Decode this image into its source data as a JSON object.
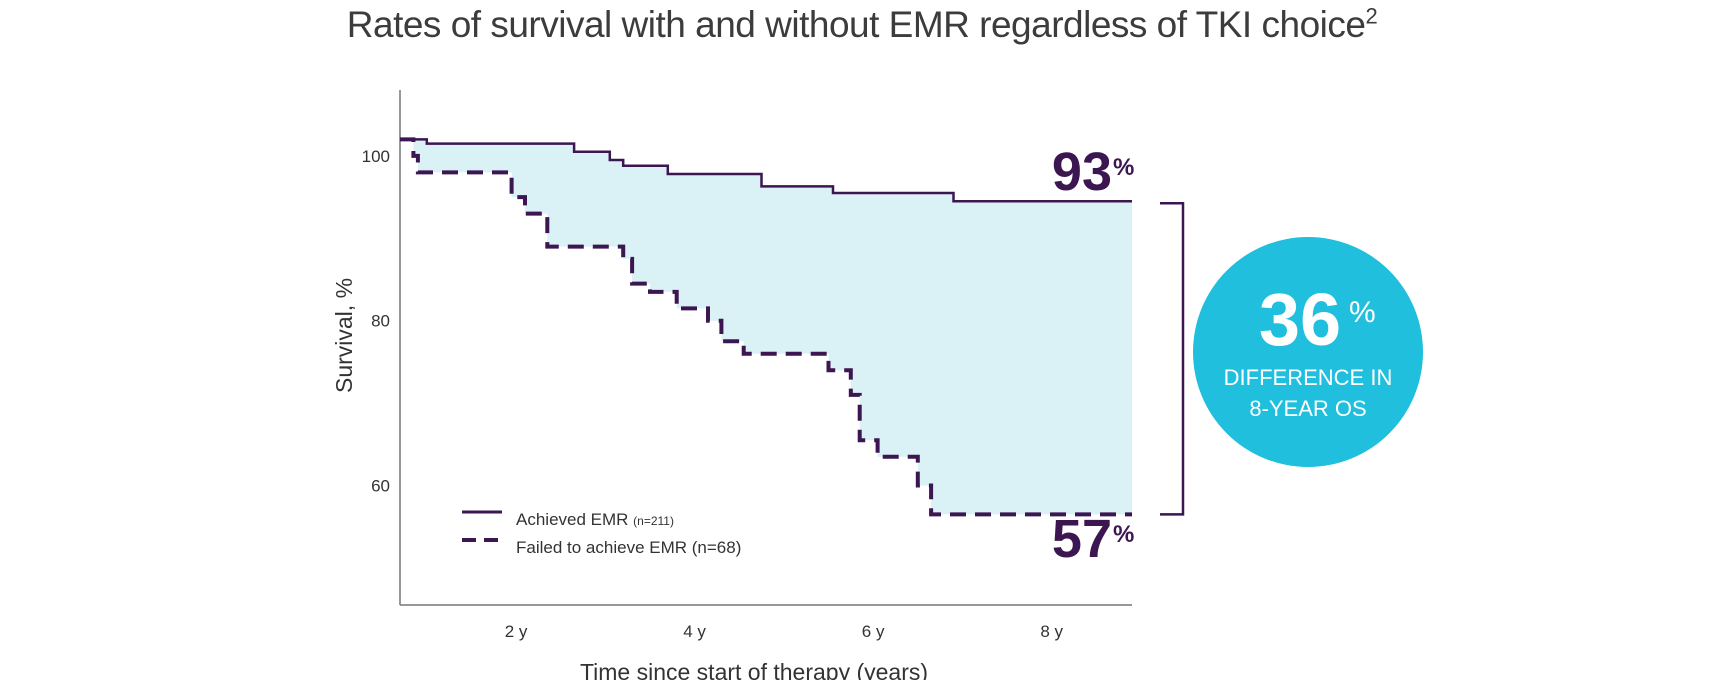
{
  "title": "Rates of survival with and without EMR regardless of TKI choice",
  "title_superscript": "2",
  "colors": {
    "line": "#3b1650",
    "shade": "#daf1f6",
    "circle": "#1fbfdd",
    "axis": "#777777"
  },
  "chart_data": {
    "type": "line",
    "xlabel": "Time since start of therapy (years)",
    "ylabel": "Survival, %",
    "x_ticks": [
      {
        "value": 2,
        "label": "2 y"
      },
      {
        "value": 4,
        "label": "4 y"
      },
      {
        "value": 6,
        "label": "6 y"
      },
      {
        "value": 8,
        "label": "8 y"
      }
    ],
    "y_ticks": [
      {
        "value": 60,
        "label": "60"
      },
      {
        "value": 80,
        "label": "80"
      },
      {
        "value": 100,
        "label": "100"
      }
    ],
    "xlim": [
      0.7,
      8.9
    ],
    "ylim": [
      45.5,
      108
    ],
    "series": [
      {
        "name": "Achieved EMR",
        "n_label": "(n=211)",
        "style": "solid",
        "points": [
          [
            0.7,
            102
          ],
          [
            1,
            102
          ],
          [
            1,
            101.5
          ],
          [
            2.65,
            101.5
          ],
          [
            2.65,
            100.5
          ],
          [
            3.05,
            100.5
          ],
          [
            3.05,
            99.5
          ],
          [
            3.2,
            99.5
          ],
          [
            3.2,
            98.8
          ],
          [
            3.7,
            98.8
          ],
          [
            3.7,
            97.8
          ],
          [
            4.75,
            97.8
          ],
          [
            4.75,
            96.3
          ],
          [
            5.55,
            96.3
          ],
          [
            5.55,
            95.5
          ],
          [
            6.9,
            95.5
          ],
          [
            6.9,
            94.5
          ],
          [
            8.9,
            94.5
          ]
        ]
      },
      {
        "name": "Failed to achieve EMR (n=68)",
        "style": "dashed",
        "points": [
          [
            0.7,
            102
          ],
          [
            0.85,
            102
          ],
          [
            0.85,
            100
          ],
          [
            0.9,
            100
          ],
          [
            0.9,
            98
          ],
          [
            1.95,
            98
          ],
          [
            1.95,
            95
          ],
          [
            2.1,
            95
          ],
          [
            2.1,
            93
          ],
          [
            2.35,
            93
          ],
          [
            2.35,
            89
          ],
          [
            3.2,
            89
          ],
          [
            3.2,
            87.5
          ],
          [
            3.3,
            87.5
          ],
          [
            3.3,
            84.5
          ],
          [
            3.5,
            84.5
          ],
          [
            3.5,
            83.5
          ],
          [
            3.8,
            83.5
          ],
          [
            3.8,
            81.5
          ],
          [
            4.15,
            81.5
          ],
          [
            4.15,
            80
          ],
          [
            4.3,
            80
          ],
          [
            4.3,
            77.5
          ],
          [
            4.55,
            77.5
          ],
          [
            4.55,
            76
          ],
          [
            5.5,
            76
          ],
          [
            5.5,
            74
          ],
          [
            5.75,
            74
          ],
          [
            5.75,
            71
          ],
          [
            5.85,
            71
          ],
          [
            5.85,
            65.5
          ],
          [
            6.05,
            65.5
          ],
          [
            6.05,
            63.5
          ],
          [
            6.5,
            63.5
          ],
          [
            6.5,
            60
          ],
          [
            6.65,
            60
          ],
          [
            6.65,
            56.5
          ],
          [
            8.9,
            56.5
          ]
        ]
      }
    ],
    "annotations": {
      "top_value": "93",
      "bottom_value": "57",
      "percent_sign": "%",
      "difference_value": "36",
      "difference_line1": "DIFFERENCE IN",
      "difference_line2": "8-YEAR OS"
    }
  }
}
